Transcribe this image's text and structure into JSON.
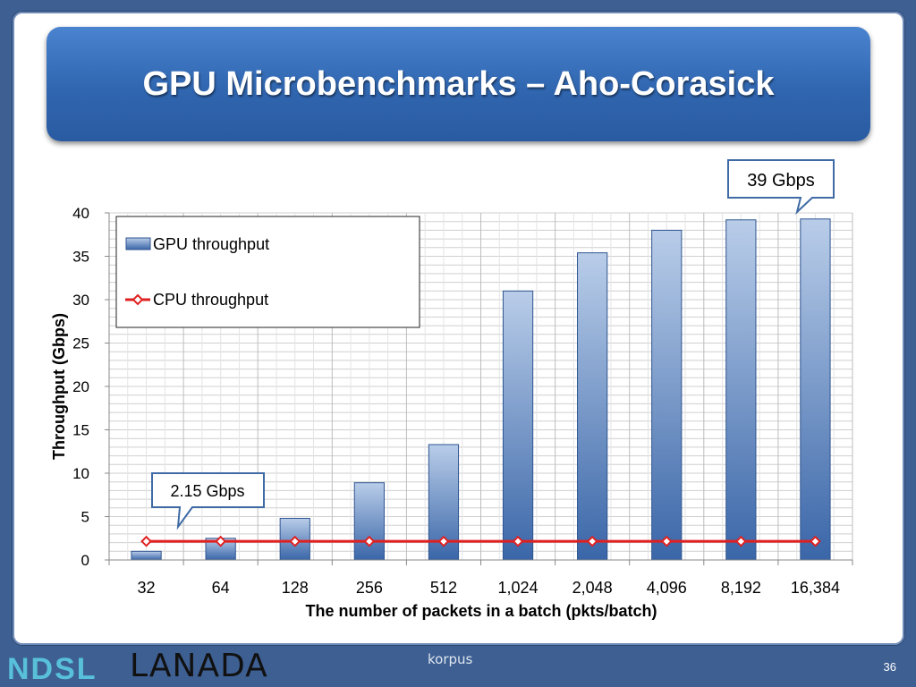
{
  "slide": {
    "title": "GPU Microbenchmarks – Aho-Corasick",
    "page_number": "36",
    "logo_left": "NDSL",
    "logo_lanada": "LANADA",
    "logo_center": "korpus"
  },
  "callouts": {
    "top": "39 Gbps",
    "bottom": "2.15 Gbps"
  },
  "colors": {
    "bar_top": "#b9cde9",
    "bar_bottom": "#3a66a8",
    "bar_stroke": "#2f5590",
    "cpu_line": "#e02020",
    "title_bar": "#3066b0"
  },
  "chart_data": {
    "type": "bar",
    "categories": [
      "32",
      "64",
      "128",
      "256",
      "512",
      "1,024",
      "2,048",
      "4,096",
      "8,192",
      "16,384"
    ],
    "series": [
      {
        "name": "GPU throughput",
        "type": "bar",
        "values": [
          1.0,
          2.5,
          4.8,
          8.9,
          13.3,
          31.0,
          35.4,
          38.0,
          39.2,
          39.3
        ]
      },
      {
        "name": "CPU throughput",
        "type": "line",
        "values": [
          2.15,
          2.15,
          2.15,
          2.15,
          2.15,
          2.15,
          2.15,
          2.15,
          2.15,
          2.15
        ]
      }
    ],
    "xlabel": "The number of packets in a batch (pkts/batch)",
    "ylabel": "Throughput (Gbps)",
    "ylim": [
      0,
      40
    ],
    "yticks": [
      0,
      5,
      10,
      15,
      20,
      25,
      30,
      35,
      40
    ],
    "grid": true,
    "legend": "top-left"
  }
}
